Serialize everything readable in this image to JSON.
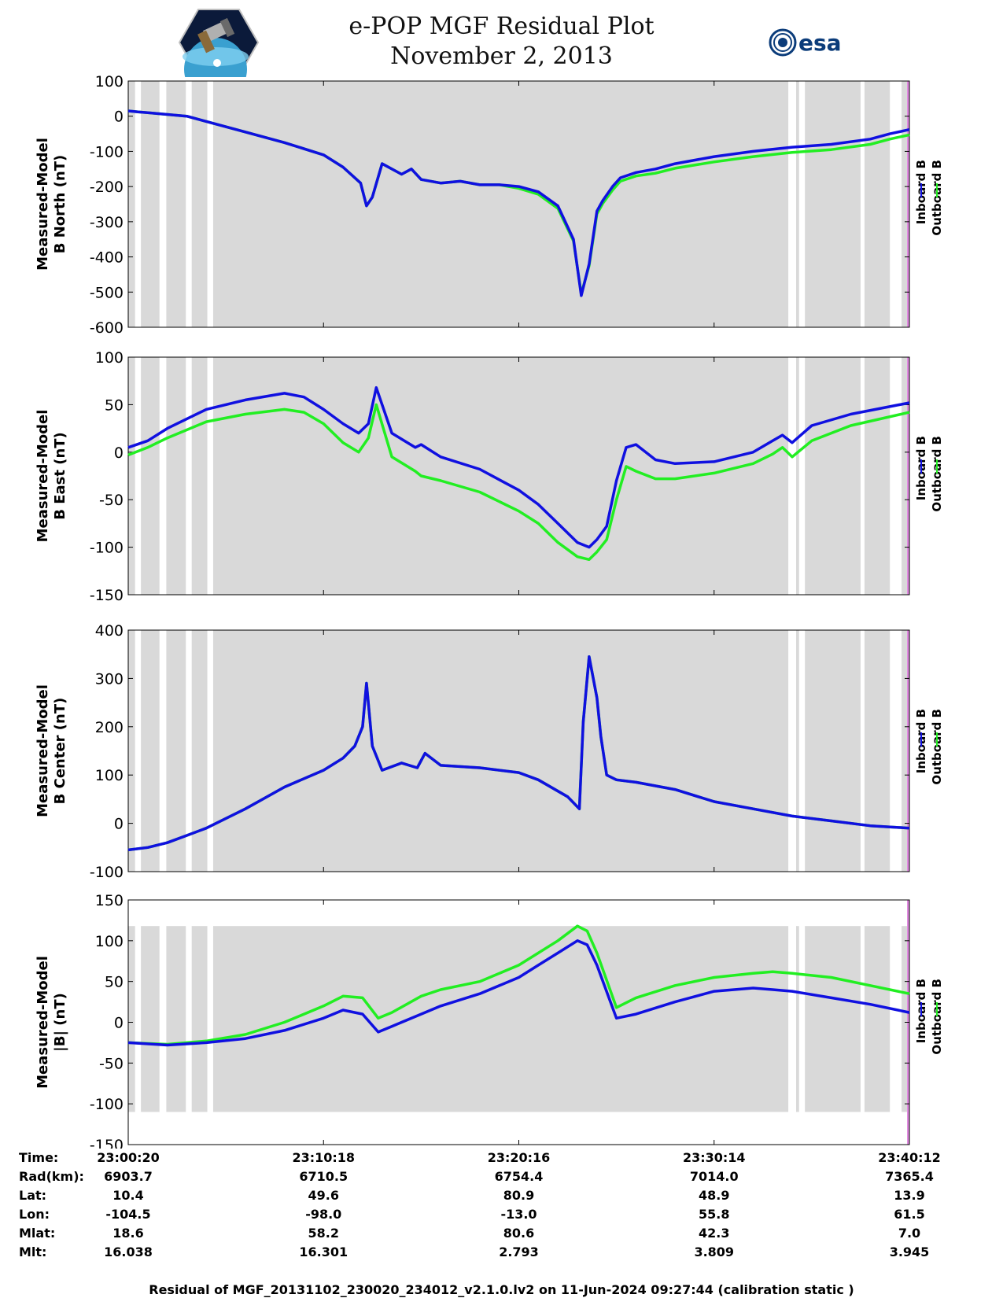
{
  "header": {
    "title": "e-POP MGF Residual Plot",
    "date": "November 2, 2013",
    "logo_left_name": "cassiope-mission-logo",
    "logo_right_text": "esa"
  },
  "colors": {
    "inboard": "#1010e0",
    "outboard": "#22ee22",
    "shade": "#d9d9d9",
    "edge_marker": "#e08ce0"
  },
  "chart_data": [
    {
      "type": "line",
      "id": "north",
      "title": "",
      "ylabel_line1": "Measured-Model",
      "ylabel_line2": "B North (nT)",
      "ylim": [
        -600,
        100
      ],
      "yticks": [
        100,
        0,
        -100,
        -200,
        -300,
        -400,
        -500,
        -600
      ],
      "shade_ylim": [
        -600,
        100
      ],
      "legend": [
        "Inboard B",
        "Outboard B"
      ],
      "series": [
        {
          "name": "Inboard B",
          "x": [
            0,
            0.5,
            1,
            2,
            3,
            4,
            6,
            8,
            10,
            11,
            11.9,
            12.2,
            12.5,
            13,
            14,
            14.5,
            15,
            16,
            17,
            18,
            19,
            20,
            21,
            22,
            22.8,
            23.2,
            23.6,
            24,
            24.3,
            24.8,
            25.2,
            26,
            27,
            28,
            30,
            32,
            34,
            36,
            38,
            39,
            40
          ],
          "y": [
            15,
            12,
            10,
            5,
            0,
            -15,
            -45,
            -75,
            -110,
            -145,
            -190,
            -255,
            -230,
            -135,
            -165,
            -150,
            -180,
            -190,
            -185,
            -195,
            -195,
            -200,
            -215,
            -255,
            -350,
            -510,
            -420,
            -270,
            -240,
            -200,
            -175,
            -160,
            -150,
            -135,
            -115,
            -100,
            -88,
            -80,
            -65,
            -50,
            -38
          ]
        },
        {
          "name": "Outboard B",
          "x": [
            0,
            0.5,
            1,
            2,
            3,
            4,
            6,
            8,
            10,
            11,
            11.9,
            12.2,
            12.5,
            13,
            14,
            14.5,
            15,
            16,
            17,
            18,
            19,
            20,
            21,
            22,
            22.8,
            23.2,
            23.6,
            24,
            24.3,
            24.8,
            25.2,
            26,
            27,
            28,
            30,
            32,
            34,
            36,
            38,
            39,
            40
          ],
          "y": [
            15,
            12,
            10,
            5,
            0,
            -15,
            -45,
            -75,
            -110,
            -145,
            -190,
            -255,
            -230,
            -135,
            -165,
            -150,
            -180,
            -190,
            -185,
            -195,
            -195,
            -205,
            -222,
            -262,
            -355,
            -505,
            -425,
            -278,
            -248,
            -210,
            -185,
            -170,
            -162,
            -148,
            -130,
            -115,
            -103,
            -95,
            -80,
            -65,
            -53
          ]
        }
      ]
    },
    {
      "type": "line",
      "id": "east",
      "ylabel_line1": "Measured-Model",
      "ylabel_line2": "B East (nT)",
      "ylim": [
        -150,
        100
      ],
      "yticks": [
        100,
        50,
        0,
        -50,
        -100,
        -150
      ],
      "shade_ylim": [
        -150,
        100
      ],
      "legend": [
        "Inboard B",
        "Outboard B"
      ],
      "series": [
        {
          "name": "Inboard B",
          "x": [
            0,
            1,
            2,
            4,
            6,
            8,
            9,
            10,
            11,
            11.8,
            12.3,
            12.7,
            13.5,
            14.7,
            15,
            16,
            18,
            20,
            21,
            22,
            23,
            23.6,
            24,
            24.5,
            25,
            25.5,
            26,
            27,
            28,
            30,
            32,
            33,
            33.5,
            34,
            35,
            37,
            40
          ],
          "y": [
            5,
            12,
            25,
            45,
            55,
            62,
            58,
            45,
            30,
            20,
            30,
            68,
            20,
            5,
            8,
            -5,
            -18,
            -40,
            -55,
            -75,
            -95,
            -100,
            -92,
            -78,
            -30,
            5,
            8,
            -8,
            -12,
            -10,
            0,
            12,
            18,
            10,
            28,
            40,
            52
          ]
        },
        {
          "name": "Outboard B",
          "x": [
            0,
            1,
            2,
            4,
            6,
            8,
            9,
            10,
            11,
            11.8,
            12.3,
            12.7,
            13.5,
            14.7,
            15,
            16,
            18,
            20,
            21,
            22,
            23,
            23.6,
            24,
            24.5,
            25,
            25.5,
            26,
            27,
            28,
            30,
            32,
            33,
            33.5,
            34,
            35,
            37,
            40
          ],
          "y": [
            -3,
            5,
            15,
            32,
            40,
            45,
            42,
            30,
            10,
            0,
            15,
            50,
            -5,
            -20,
            -25,
            -30,
            -42,
            -62,
            -75,
            -95,
            -110,
            -113,
            -105,
            -92,
            -50,
            -15,
            -20,
            -28,
            -28,
            -22,
            -12,
            -2,
            5,
            -5,
            12,
            28,
            42
          ]
        }
      ]
    },
    {
      "type": "line",
      "id": "center",
      "ylabel_line1": "Measured-Model",
      "ylabel_line2": "B Center (nT)",
      "ylim": [
        -100,
        400
      ],
      "yticks": [
        400,
        300,
        200,
        100,
        0,
        -100
      ],
      "shade_ylim": [
        -100,
        400
      ],
      "legend": [
        "Inboard B",
        "Outboard B"
      ],
      "series": [
        {
          "name": "Inboard B",
          "x": [
            0,
            1,
            2,
            3,
            4,
            6,
            8,
            10,
            11,
            11.6,
            12,
            12.2,
            12.5,
            13,
            14,
            14.8,
            15.2,
            16,
            18,
            20,
            21,
            22.5,
            23.1,
            23.3,
            23.6,
            24,
            24.2,
            24.5,
            25,
            26,
            28,
            30,
            32,
            34,
            36,
            38,
            40
          ],
          "y": [
            -55,
            -50,
            -40,
            -25,
            -10,
            30,
            75,
            110,
            135,
            160,
            200,
            290,
            160,
            110,
            125,
            115,
            145,
            120,
            115,
            105,
            90,
            55,
            30,
            210,
            345,
            260,
            180,
            100,
            90,
            85,
            70,
            45,
            30,
            15,
            5,
            -5,
            -10
          ]
        },
        {
          "name": "Outboard B",
          "x": [
            0,
            1,
            2,
            3,
            4,
            6,
            8,
            10,
            11,
            11.6,
            12,
            12.2,
            12.5,
            13,
            14,
            14.8,
            15.2,
            16,
            18,
            20,
            21,
            22.5,
            23.1,
            23.3,
            23.6,
            24,
            24.2,
            24.5,
            25,
            26,
            28,
            30,
            32,
            34,
            36,
            38,
            40
          ],
          "y": [
            -55,
            -50,
            -40,
            -25,
            -10,
            30,
            75,
            110,
            135,
            160,
            200,
            290,
            160,
            110,
            125,
            115,
            145,
            120,
            115,
            105,
            90,
            55,
            30,
            210,
            345,
            260,
            180,
            100,
            90,
            85,
            70,
            45,
            30,
            15,
            5,
            -5,
            -10
          ]
        }
      ]
    },
    {
      "type": "line",
      "id": "total",
      "ylabel_line1": "Measured-Model",
      "ylabel_line2": "|B| (nT)",
      "ylim": [
        -150,
        150
      ],
      "yticks": [
        150,
        100,
        50,
        0,
        -50,
        -100,
        -150
      ],
      "shade_ylim": [
        -110,
        118
      ],
      "legend": [
        "Inboard B",
        "Outboard B"
      ],
      "series": [
        {
          "name": "Inboard B",
          "x": [
            0,
            2,
            4,
            6,
            8,
            10,
            11,
            12,
            12.8,
            13.5,
            15,
            16,
            18,
            20,
            21,
            22,
            23,
            23.5,
            24,
            25,
            26,
            28,
            30,
            32,
            33,
            34,
            36,
            38,
            40
          ],
          "y": [
            -25,
            -28,
            -25,
            -20,
            -10,
            5,
            15,
            10,
            -12,
            -5,
            10,
            20,
            35,
            55,
            70,
            85,
            100,
            95,
            70,
            5,
            10,
            25,
            38,
            42,
            40,
            38,
            30,
            22,
            12
          ]
        },
        {
          "name": "Outboard B",
          "x": [
            0,
            2,
            4,
            6,
            8,
            10,
            11,
            12,
            12.8,
            13.5,
            15,
            16,
            18,
            20,
            21,
            22,
            23,
            23.5,
            24,
            25,
            26,
            28,
            30,
            32,
            33,
            34,
            36,
            38,
            40
          ],
          "y": [
            -25,
            -27,
            -23,
            -15,
            0,
            20,
            32,
            30,
            5,
            12,
            32,
            40,
            50,
            70,
            85,
            100,
            118,
            112,
            85,
            18,
            30,
            45,
            55,
            60,
            62,
            60,
            55,
            45,
            35
          ]
        }
      ]
    }
  ],
  "shaded_intervals": [
    [
      0,
      0.35
    ],
    [
      0.65,
      1.6
    ],
    [
      1.95,
      2.95
    ],
    [
      3.25,
      4.05
    ],
    [
      4.35,
      33.8
    ],
    [
      34.2,
      34.35
    ],
    [
      34.65,
      37.5
    ],
    [
      37.7,
      39.0
    ],
    [
      39.6,
      40.0
    ]
  ],
  "x_axis": {
    "min": 0,
    "max": 40,
    "unit": "minutes since 23:00:20",
    "tick_positions": [
      0,
      10,
      20,
      30,
      40
    ]
  },
  "orbit_info": {
    "rows": [
      {
        "label": "Time:",
        "values": [
          "23:00:20",
          "23:10:18",
          "23:20:16",
          "23:30:14",
          "23:40:12"
        ]
      },
      {
        "label": "Rad(km):",
        "values": [
          "6903.7",
          "6710.5",
          "6754.4",
          "7014.0",
          "7365.4"
        ]
      },
      {
        "label": "Lat:",
        "values": [
          "10.4",
          "49.6",
          "80.9",
          "48.9",
          "13.9"
        ]
      },
      {
        "label": "Lon:",
        "values": [
          "-104.5",
          "-98.0",
          "-13.0",
          "55.8",
          "61.5"
        ]
      },
      {
        "label": "Mlat:",
        "values": [
          "18.6",
          "58.2",
          "80.6",
          "42.3",
          "7.0"
        ]
      },
      {
        "label": "Mlt:",
        "values": [
          "16.038",
          "16.301",
          "2.793",
          "3.809",
          "3.945"
        ]
      }
    ]
  },
  "footer": {
    "text": "Residual of MGF_20131102_230020_234012_v2.1.0.lv2 on 11-Jun-2024 09:27:44 (calibration static )"
  }
}
